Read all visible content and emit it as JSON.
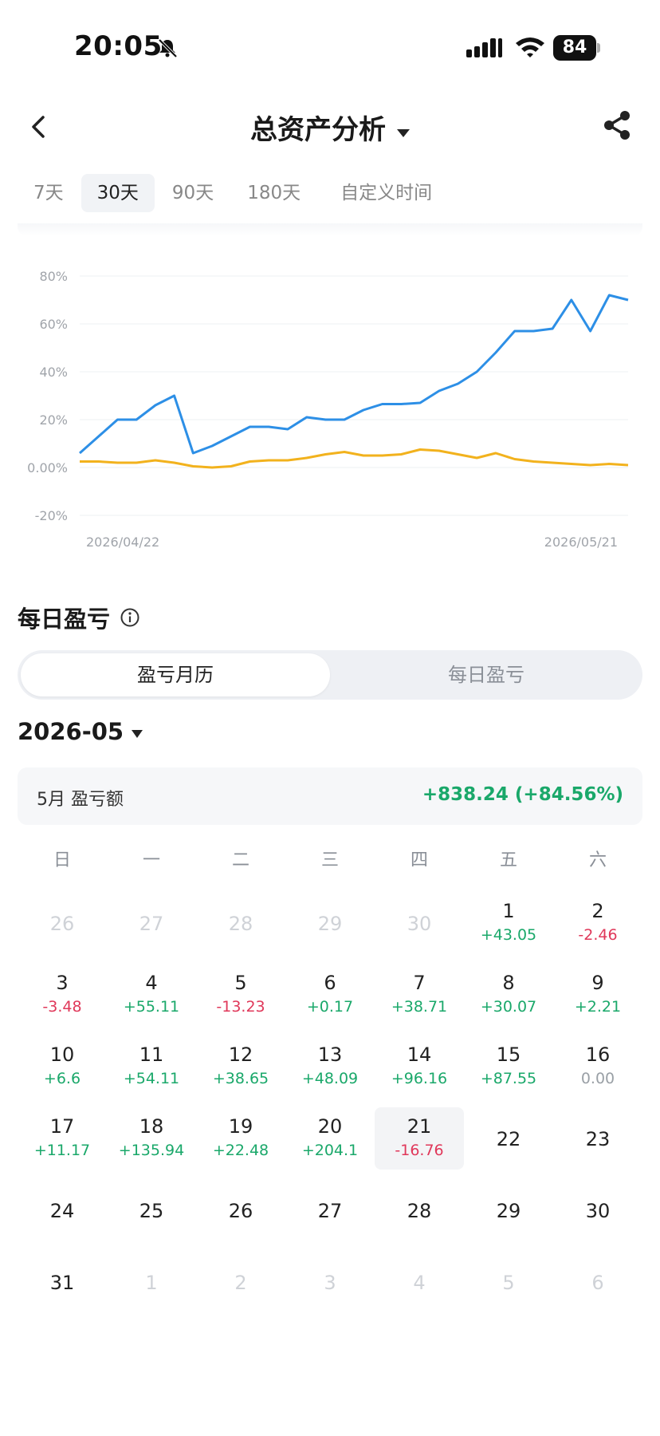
{
  "status_bar": {
    "time": "20:05",
    "battery": "84"
  },
  "header": {
    "title": "总资产分析"
  },
  "range_tabs": [
    {
      "label": "7天",
      "active": false
    },
    {
      "label": "30天",
      "active": true
    },
    {
      "label": "90天",
      "active": false
    },
    {
      "label": "180天",
      "active": false
    },
    {
      "label": "自定义时间",
      "active": false
    }
  ],
  "chart_data": {
    "type": "line",
    "x_start_label": "2026/04/22",
    "x_end_label": "2026/05/21",
    "y_ticks": [
      "80%",
      "60%",
      "40%",
      "20%",
      "0.00%",
      "-20%"
    ],
    "ylim": [
      -20,
      80
    ],
    "series": [
      {
        "color": "#2d8fe6",
        "values": [
          6,
          13,
          20,
          20,
          26,
          30,
          6,
          9,
          13,
          17,
          17,
          16,
          21,
          20,
          20,
          24,
          26.5,
          26.5,
          27,
          32,
          35,
          40,
          48,
          57,
          57,
          58,
          70,
          57,
          72,
          70
        ]
      },
      {
        "color": "#f2b21d",
        "values": [
          2.5,
          2.5,
          2,
          2,
          3,
          2,
          0.5,
          0,
          0.5,
          2.5,
          3,
          3,
          4,
          5.5,
          6.5,
          5,
          5,
          5.5,
          7.5,
          7,
          5.5,
          4,
          6,
          3.5,
          2.5,
          2,
          1.5,
          1,
          1.5,
          1
        ]
      }
    ]
  },
  "daily_pl": {
    "title": "每日盈亏",
    "segments": {
      "calendar": "盈亏月历",
      "daily": "每日盈亏"
    },
    "month": "2026-05",
    "summary_label": "5月 盈亏额",
    "summary_value": "+838.24 (+84.56%)",
    "weekdays": [
      "日",
      "一",
      "二",
      "三",
      "四",
      "五",
      "六"
    ],
    "weeks": [
      [
        {
          "day": "26",
          "other": true
        },
        {
          "day": "27",
          "other": true
        },
        {
          "day": "28",
          "other": true
        },
        {
          "day": "29",
          "other": true
        },
        {
          "day": "30",
          "other": true
        },
        {
          "day": "1",
          "pl": "+43.05",
          "sign": "pos"
        },
        {
          "day": "2",
          "pl": "-2.46",
          "sign": "neg"
        }
      ],
      [
        {
          "day": "3",
          "pl": "-3.48",
          "sign": "neg"
        },
        {
          "day": "4",
          "pl": "+55.11",
          "sign": "pos"
        },
        {
          "day": "5",
          "pl": "-13.23",
          "sign": "neg"
        },
        {
          "day": "6",
          "pl": "+0.17",
          "sign": "pos"
        },
        {
          "day": "7",
          "pl": "+38.71",
          "sign": "pos"
        },
        {
          "day": "8",
          "pl": "+30.07",
          "sign": "pos"
        },
        {
          "day": "9",
          "pl": "+2.21",
          "sign": "pos"
        }
      ],
      [
        {
          "day": "10",
          "pl": "+6.6",
          "sign": "pos"
        },
        {
          "day": "11",
          "pl": "+54.11",
          "sign": "pos"
        },
        {
          "day": "12",
          "pl": "+38.65",
          "sign": "pos"
        },
        {
          "day": "13",
          "pl": "+48.09",
          "sign": "pos"
        },
        {
          "day": "14",
          "pl": "+96.16",
          "sign": "pos"
        },
        {
          "day": "15",
          "pl": "+87.55",
          "sign": "pos"
        },
        {
          "day": "16",
          "pl": "0.00",
          "sign": "zero"
        }
      ],
      [
        {
          "day": "17",
          "pl": "+11.17",
          "sign": "pos"
        },
        {
          "day": "18",
          "pl": "+135.94",
          "sign": "pos"
        },
        {
          "day": "19",
          "pl": "+22.48",
          "sign": "pos"
        },
        {
          "day": "20",
          "pl": "+204.1",
          "sign": "pos"
        },
        {
          "day": "21",
          "pl": "-16.76",
          "sign": "neg",
          "today": true
        },
        {
          "day": "22"
        },
        {
          "day": "23"
        }
      ],
      [
        {
          "day": "24"
        },
        {
          "day": "25"
        },
        {
          "day": "26"
        },
        {
          "day": "27"
        },
        {
          "day": "28"
        },
        {
          "day": "29"
        },
        {
          "day": "30"
        }
      ],
      [
        {
          "day": "31"
        },
        {
          "day": "1",
          "other": true
        },
        {
          "day": "2",
          "other": true
        },
        {
          "day": "3",
          "other": true
        },
        {
          "day": "4",
          "other": true
        },
        {
          "day": "5",
          "other": true
        },
        {
          "day": "6",
          "other": true
        }
      ]
    ]
  }
}
